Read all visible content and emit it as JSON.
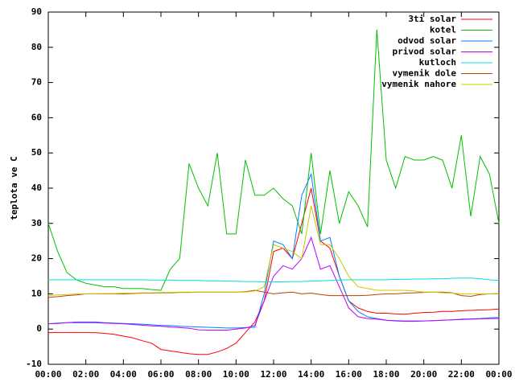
{
  "chart_data": {
    "type": "line",
    "ylabel": "teplota ve C",
    "legend": "upper right",
    "x": [
      0,
      0.5,
      1,
      1.5,
      2,
      2.5,
      3,
      3.5,
      4,
      4.5,
      5,
      5.5,
      6,
      6.5,
      7,
      7.5,
      8,
      8.5,
      9,
      9.5,
      10,
      10.5,
      11,
      11.5,
      12,
      12.5,
      13,
      13.5,
      14,
      14.5,
      15,
      15.5,
      16,
      16.5,
      17,
      17.5,
      18,
      18.5,
      19,
      19.5,
      20,
      20.5,
      21,
      21.5,
      22,
      22.5,
      23,
      23.5,
      24
    ],
    "xlim": [
      0,
      24
    ],
    "xticks": [
      {
        "value": 0,
        "label": "00:00"
      },
      {
        "value": 2,
        "label": "02:00"
      },
      {
        "value": 4,
        "label": "04:00"
      },
      {
        "value": 6,
        "label": "06:00"
      },
      {
        "value": 8,
        "label": "08:00"
      },
      {
        "value": 10,
        "label": "10:00"
      },
      {
        "value": 12,
        "label": "12:00"
      },
      {
        "value": 14,
        "label": "14:00"
      },
      {
        "value": 16,
        "label": "16:00"
      },
      {
        "value": 18,
        "label": "18:00"
      },
      {
        "value": 20,
        "label": "20:00"
      },
      {
        "value": 22,
        "label": "22:00"
      },
      {
        "value": 24,
        "label": "00:00"
      }
    ],
    "ylim": [
      -10,
      90
    ],
    "yticks": [
      -10,
      0,
      10,
      20,
      30,
      40,
      50,
      60,
      70,
      80,
      90
    ],
    "series": [
      {
        "name": "3ti solar",
        "color": "#ff0000",
        "values": [
          -1,
          -1,
          -1,
          -1,
          -1,
          -1,
          -1.2,
          -1.5,
          -2,
          -2.5,
          -3.3,
          -4,
          -5.8,
          -6.2,
          -6.6,
          -7,
          -7.2,
          -7.2,
          -6.5,
          -5.5,
          -4,
          -1,
          2,
          8,
          22,
          23,
          20,
          30,
          40,
          25,
          23,
          15,
          8,
          6,
          5,
          4.5,
          4.5,
          4.3,
          4.2,
          4.5,
          4.7,
          4.8,
          5,
          5,
          5.2,
          5.3,
          5.4,
          5.5,
          5.7
        ]
      },
      {
        "name": "kotel",
        "color": "#00c000",
        "values": [
          30,
          22,
          16,
          14,
          13,
          12.5,
          12,
          12,
          11.5,
          11.5,
          11.5,
          11.2,
          11,
          17,
          20,
          47,
          40,
          35,
          50,
          27,
          27,
          48,
          38,
          38,
          40,
          37,
          35,
          27,
          50,
          27,
          45,
          30,
          39,
          35,
          29,
          85,
          48,
          40,
          49,
          48,
          48,
          49,
          48,
          40,
          55,
          32,
          49,
          44,
          30
        ]
      },
      {
        "name": "odvod solar",
        "color": "#0080ff",
        "values": [
          1.5,
          1.7,
          1.8,
          2,
          2,
          2,
          1.8,
          1.7,
          1.6,
          1.5,
          1.4,
          1.2,
          1,
          1,
          0.8,
          0.7,
          0.6,
          0.5,
          0.4,
          0.3,
          0.3,
          0.4,
          0.5,
          10,
          25,
          24,
          20,
          38,
          44,
          25,
          26,
          15,
          8,
          5,
          3.5,
          3,
          2.5,
          2.3,
          2.2,
          2.2,
          2.3,
          2.4,
          2.5,
          2.6,
          2.8,
          2.9,
          3,
          3.2,
          3.3
        ]
      },
      {
        "name": "privod solar",
        "color": "#c000ff",
        "values": [
          1.5,
          1.6,
          1.8,
          1.8,
          1.8,
          1.8,
          1.7,
          1.6,
          1.5,
          1.3,
          1.1,
          0.9,
          0.8,
          0.6,
          0.4,
          0.2,
          -0.2,
          -0.3,
          -0.3,
          -0.3,
          0,
          0.3,
          1,
          8,
          15,
          18,
          17,
          20,
          26,
          17,
          18,
          12,
          6,
          3.5,
          3,
          2.8,
          2.5,
          2.4,
          2.3,
          2.3,
          2.3,
          2.4,
          2.5,
          2.6,
          2.7,
          2.8,
          2.9,
          3,
          3
        ]
      },
      {
        "name": "kutloch",
        "color": "#00e0e0",
        "values": [
          14,
          14,
          14,
          14,
          14,
          14,
          14,
          14,
          14,
          14,
          14,
          13.9,
          13.9,
          13.9,
          13.8,
          13.8,
          13.8,
          13.7,
          13.7,
          13.6,
          13.6,
          13.5,
          13.5,
          13.4,
          13.4,
          13.4,
          13.5,
          13.5,
          13.6,
          13.7,
          13.8,
          13.9,
          14,
          14,
          14,
          14,
          14,
          14.1,
          14.1,
          14.2,
          14.2,
          14.3,
          14.3,
          14.4,
          14.5,
          14.5,
          14.3,
          14,
          13.8
        ]
      },
      {
        "name": "vymenik dole",
        "color": "#c04000",
        "values": [
          9,
          9.2,
          9.5,
          9.7,
          10,
          10,
          10,
          10,
          10,
          10.1,
          10.2,
          10.2,
          10.3,
          10.3,
          10.4,
          10.4,
          10.5,
          10.5,
          10.5,
          10.5,
          10.5,
          10.6,
          11,
          10.5,
          10,
          10.3,
          10.5,
          10,
          10.2,
          9.8,
          9.5,
          9.5,
          9.5,
          9.5,
          9.6,
          9.8,
          10,
          10,
          10.2,
          10.3,
          10.4,
          10.5,
          10.5,
          10.3,
          9.5,
          9.3,
          9.8,
          10,
          10
        ]
      },
      {
        "name": "vymenik nahore",
        "color": "#c8c800",
        "values": [
          9.5,
          9.7,
          9.8,
          10,
          10,
          10,
          10.1,
          10.1,
          10.2,
          10.2,
          10.3,
          10.3,
          10.4,
          10.4,
          10.5,
          10.5,
          10.5,
          10.5,
          10.5,
          10.5,
          10.5,
          10.5,
          10.8,
          12,
          24,
          23,
          22,
          20,
          35,
          24,
          24,
          20,
          15,
          12,
          11.5,
          11,
          11,
          11,
          11,
          10.8,
          10.5,
          10.5,
          10.3,
          10.2,
          10,
          10,
          10,
          10,
          10
        ]
      }
    ]
  }
}
